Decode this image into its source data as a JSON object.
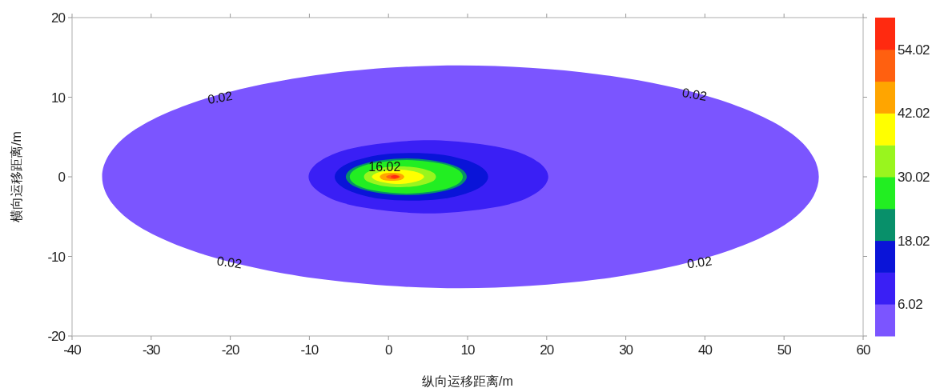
{
  "chart_data": {
    "type": "area",
    "xlabel": "纵向运移距离/m",
    "ylabel": "横向运移距离/m",
    "xlim": [
      -40,
      60
    ],
    "xticks": [
      -40,
      -30,
      -20,
      -10,
      0,
      10,
      20,
      30,
      40,
      50,
      60
    ],
    "ylim": [
      -20,
      20
    ],
    "yticks": [
      -20,
      -10,
      0,
      10,
      20
    ],
    "clim": [
      0.02,
      60.02
    ],
    "cticks": [
      6.02,
      18.02,
      30.02,
      42.02,
      54.02
    ],
    "grid": false,
    "series": [
      {
        "color": "#7b55ff",
        "x": [
          54.4,
          51.0,
          41.1,
          26.4,
          9.1,
          -8.2,
          -22.9,
          -32.8,
          -36.2,
          -32.8,
          -22.9,
          -8.2,
          9.1,
          26.4,
          41.1,
          51.0
        ],
        "values": [
          0,
          5.4,
          9.9,
          12.9,
          14,
          12.9,
          9.9,
          5.4,
          0,
          -5.4,
          -9.9,
          -12.9,
          -14,
          -12.9,
          -9.9,
          -5.4
        ]
      },
      {
        "color": "#3a1ff5",
        "x": [
          20.2,
          19.0,
          15.8,
          10.9,
          5.1,
          -0.8,
          -5.7,
          -8.9,
          -10.1,
          -8.9,
          -5.7,
          -0.8,
          5.1,
          10.9,
          15.8,
          19.0
        ],
        "values": [
          0,
          1.8,
          3.3,
          4.2,
          4.6,
          4.2,
          3.3,
          1.8,
          0,
          -1.8,
          -3.3,
          -4.2,
          -4.6,
          -4.2,
          -3.3,
          -1.8
        ]
      },
      {
        "color": "#0a14d8",
        "x": [
          12.6,
          11.9,
          9.8,
          6.6,
          2.9,
          -0.8,
          -4.0,
          -6.1,
          -6.8,
          -6.1,
          -4.0,
          -0.8,
          2.9,
          6.6,
          9.8,
          11.9
        ],
        "values": [
          0,
          1.1,
          2.1,
          2.8,
          3,
          2.8,
          2.1,
          1.1,
          0,
          -1.1,
          -2.1,
          -2.8,
          -3,
          -2.8,
          -2.1,
          -1.1
        ]
      },
      {
        "color": "#08906a",
        "x": [
          9.9,
          9.3,
          7.7,
          5.2,
          2.3,
          -0.7,
          -3.2,
          -4.8,
          -5.4,
          -4.8,
          -3.2,
          -0.7,
          2.3,
          5.2,
          7.7,
          9.3
        ],
        "values": [
          0,
          0.9,
          1.6,
          2.1,
          2.3,
          2.1,
          1.6,
          0.9,
          0,
          -0.9,
          -1.6,
          -2.1,
          -2.3,
          -2.1,
          -1.6,
          -0.9
        ]
      },
      {
        "color": "#22ee22",
        "x": [
          9.4,
          8.9,
          7.3,
          5.0,
          2.3,
          -0.5,
          -2.8,
          -4.4,
          -4.9,
          -4.4,
          -2.8,
          -0.5,
          2.3,
          5.0,
          7.3,
          8.9
        ],
        "values": [
          0,
          0.8,
          1.5,
          1.9,
          2.1,
          1.9,
          1.5,
          0.8,
          0,
          -0.8,
          -1.5,
          -1.9,
          -2.1,
          -1.9,
          -1.5,
          -0.8
        ]
      },
      {
        "color": "#99f51e",
        "x": [
          6.0,
          5.7,
          4.7,
          3.2,
          1.5,
          -0.3,
          -1.8,
          -2.8,
          -3.1,
          -2.8,
          -1.8,
          -0.3,
          1.5,
          3.2,
          4.7,
          5.7
        ],
        "values": [
          0,
          0.5,
          0.9,
          1.2,
          1.3,
          1.2,
          0.9,
          0.5,
          0,
          -0.5,
          -0.9,
          -1.2,
          -1.3,
          -1.2,
          -0.9,
          -0.5
        ]
      },
      {
        "color": "#ffff00",
        "x": [
          4.5,
          3.5,
          1.2,
          -1.1,
          -2.1,
          -1.1,
          1.2,
          3.5
        ],
        "values": [
          0,
          0.6,
          0.9,
          0.6,
          0,
          -0.6,
          -0.9,
          -0.6
        ]
      },
      {
        "color": "#ffa500",
        "x": [
          2.0,
          1.5,
          0.5,
          -0.6,
          -1.1,
          -0.6,
          0.5,
          1.5
        ],
        "values": [
          0,
          0.4,
          0.5,
          0.4,
          0,
          -0.4,
          -0.5,
          -0.4
        ]
      },
      {
        "color": "#ff6010",
        "x": [
          1.5,
          1.2,
          0.6,
          0,
          -0.3,
          0,
          0.6,
          1.2
        ],
        "values": [
          0,
          0.2,
          0.3,
          0.2,
          0,
          -0.2,
          -0.3,
          -0.2
        ]
      },
      {
        "color": "#ff2a10",
        "x": [
          1.3,
          1.2,
          0.8,
          0.4,
          0.3,
          0.4,
          0.8,
          1.2
        ],
        "values": [
          0,
          0.1,
          0.2,
          0.1,
          0,
          -0.1,
          -0.2,
          -0.1
        ]
      }
    ],
    "annotations": [
      {
        "text": "0.02",
        "x": -21.3,
        "y": 10
      },
      {
        "text": "0.02",
        "x": 38.7,
        "y": 10.4
      },
      {
        "text": "0.02",
        "x": -20.1,
        "y": -10.7
      },
      {
        "text": "0.02",
        "x": 39.3,
        "y": -10.7
      },
      {
        "text": "16.02",
        "x": -0.5,
        "y": 1.3
      }
    ]
  }
}
